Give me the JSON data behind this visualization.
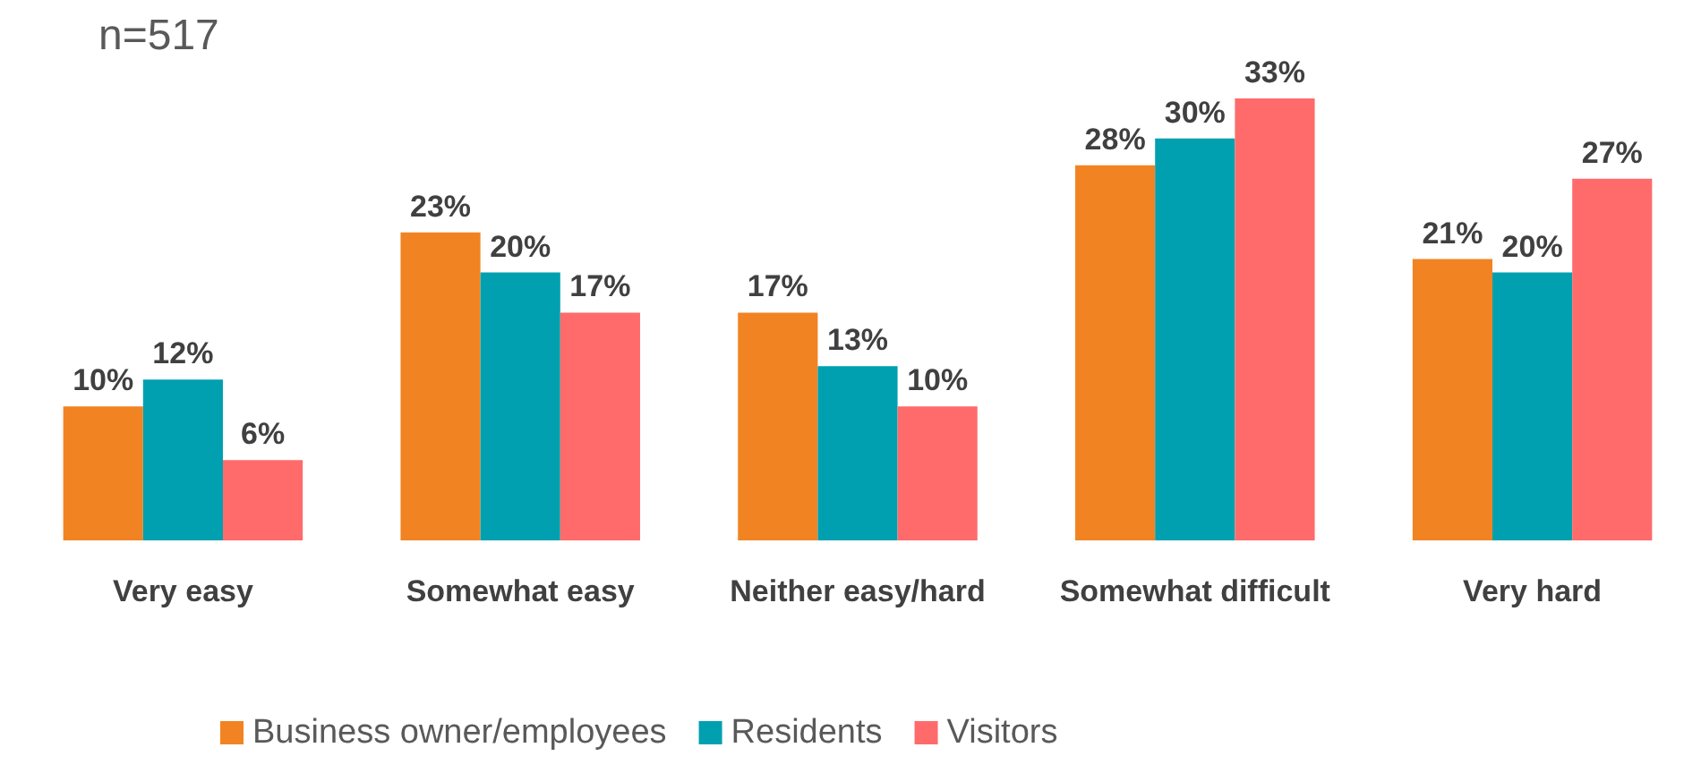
{
  "chart_data": {
    "type": "bar",
    "categories": [
      "Very easy",
      "Somewhat easy",
      "Neither easy/hard",
      "Somewhat difficult",
      "Very hard"
    ],
    "series": [
      {
        "name": "Business owner/employees",
        "color": "#f28322",
        "values": [
          10,
          23,
          17,
          28,
          21
        ],
        "value_labels": [
          "10%",
          "23%",
          "17%",
          "28%",
          "21%"
        ]
      },
      {
        "name": "Residents",
        "color": "#00a0b0",
        "values": [
          12,
          20,
          13,
          30,
          20
        ],
        "value_labels": [
          "12%",
          "20%",
          "13%",
          "30%",
          "20%"
        ]
      },
      {
        "name": "Visitors",
        "color": "#ff6b6b",
        "values": [
          6,
          17,
          10,
          33,
          27
        ],
        "value_labels": [
          "6%",
          "17%",
          "10%",
          "33%",
          "27%"
        ]
      }
    ],
    "annotations": [
      "n=517"
    ],
    "legend": "bottom"
  }
}
